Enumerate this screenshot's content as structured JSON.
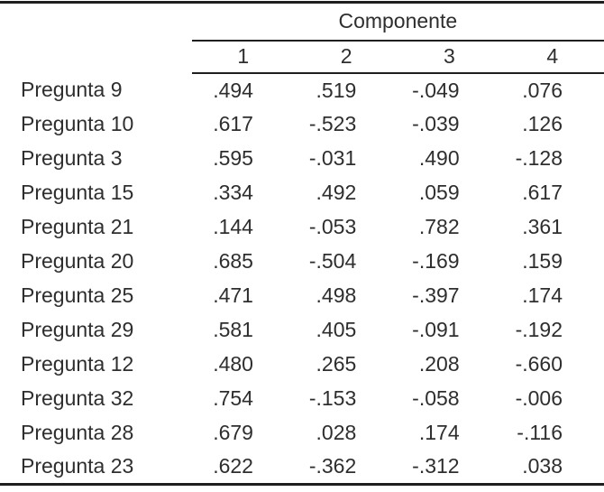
{
  "table": {
    "title": "Componente",
    "column_headers": [
      "1",
      "2",
      "3",
      "4"
    ],
    "rows": [
      {
        "label": "Pregunta 9",
        "values": [
          ".494",
          ".519",
          "-.049",
          ".076"
        ]
      },
      {
        "label": "Pregunta 10",
        "values": [
          ".617",
          "-.523",
          "-.039",
          ".126"
        ]
      },
      {
        "label": "Pregunta 3",
        "values": [
          ".595",
          "-.031",
          ".490",
          "-.128"
        ]
      },
      {
        "label": "Pregunta 15",
        "values": [
          ".334",
          ".492",
          ".059",
          ".617"
        ]
      },
      {
        "label": "Pregunta 21",
        "values": [
          ".144",
          "-.053",
          ".782",
          ".361"
        ]
      },
      {
        "label": "Pregunta 20",
        "values": [
          ".685",
          "-.504",
          "-.169",
          ".159"
        ]
      },
      {
        "label": "Pregunta 25",
        "values": [
          ".471",
          ".498",
          "-.397",
          ".174"
        ]
      },
      {
        "label": "Pregunta 29",
        "values": [
          ".581",
          ".405",
          "-.091",
          "-.192"
        ]
      },
      {
        "label": "Pregunta 12",
        "values": [
          ".480",
          ".265",
          ".208",
          "-.660"
        ]
      },
      {
        "label": "Pregunta 32",
        "values": [
          ".754",
          "-.153",
          "-.058",
          "-.006"
        ]
      },
      {
        "label": "Pregunta 28",
        "values": [
          ".679",
          ".028",
          ".174",
          "-.116"
        ]
      },
      {
        "label": "Pregunta 23",
        "values": [
          ".622",
          "-.362",
          "-.312",
          ".038"
        ]
      }
    ],
    "colors": {
      "text": "#2e2e2e",
      "rule": "#1f1f1f",
      "background": "#ffffff"
    }
  }
}
